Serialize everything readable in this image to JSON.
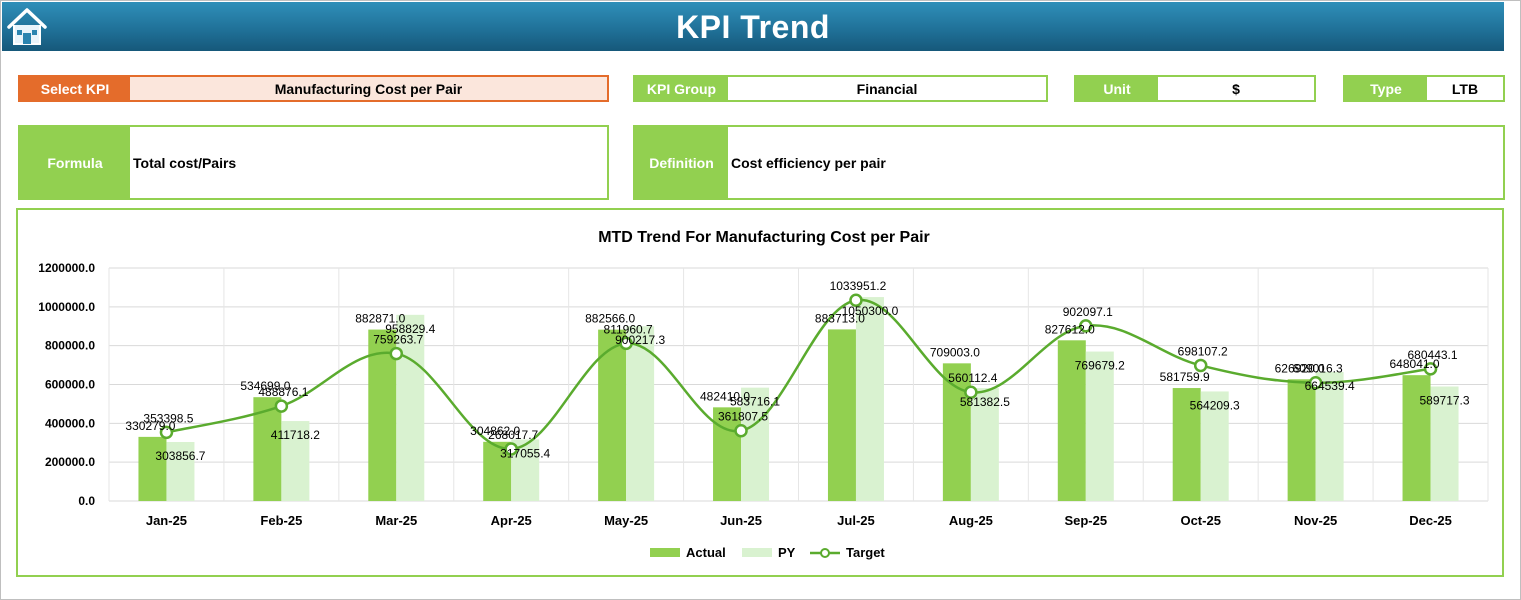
{
  "header": {
    "title": "KPI Trend",
    "home_icon": "home-icon"
  },
  "selectors": {
    "kpi_label": "Select KPI",
    "kpi_value": "Manufacturing Cost per Pair",
    "group_label": "KPI Group",
    "group_value": "Financial",
    "unit_label": "Unit",
    "unit_value": "$",
    "type_label": "Type",
    "type_value": "LTB"
  },
  "details": {
    "formula_label": "Formula",
    "formula_value": "Total cost/Pairs",
    "definition_label": "Definition",
    "definition_value": "Cost efficiency per pair"
  },
  "colors": {
    "accent": "#92d050",
    "kpi_accent": "#e46c2b",
    "header": "#1f6f96",
    "actual": "#92d050",
    "py": "#d9f2d0",
    "target": "#5aab2e"
  },
  "chart_data": {
    "type": "bar",
    "title": "MTD Trend For Manufacturing Cost per Pair",
    "categories": [
      "Jan-25",
      "Feb-25",
      "Mar-25",
      "Apr-25",
      "May-25",
      "Jun-25",
      "Jul-25",
      "Aug-25",
      "Sep-25",
      "Oct-25",
      "Nov-25",
      "Dec-25"
    ],
    "series": [
      {
        "name": "Actual",
        "type": "bar",
        "values": [
          330279.0,
          534699.0,
          882871.0,
          304862.0,
          882566.0,
          482410.0,
          883713.0,
          709003.0,
          827612.0,
          581759.9,
          626920.0,
          648041.0
        ]
      },
      {
        "name": "PY",
        "type": "bar",
        "values": [
          303856.7,
          411718.2,
          958829.4,
          317055.4,
          900217.3,
          583716.1,
          1050300.0,
          581382.5,
          769679.2,
          564209.3,
          664539.4,
          589717.3
        ]
      },
      {
        "name": "Target",
        "type": "line",
        "values": [
          353398.5,
          488876.1,
          759263.7,
          268017.7,
          811960.7,
          361807.5,
          1033951.2,
          560112.4,
          902097.1,
          698107.2,
          609016.3,
          680443.1
        ]
      }
    ],
    "ylim": [
      0,
      1200000
    ],
    "yticks": [
      "0.0",
      "200000.0",
      "400000.0",
      "600000.0",
      "800000.0",
      "1000000.0",
      "1200000.0"
    ],
    "legend": [
      "Actual",
      "PY",
      "Target"
    ],
    "legend_position": "bottom",
    "grid": true
  }
}
